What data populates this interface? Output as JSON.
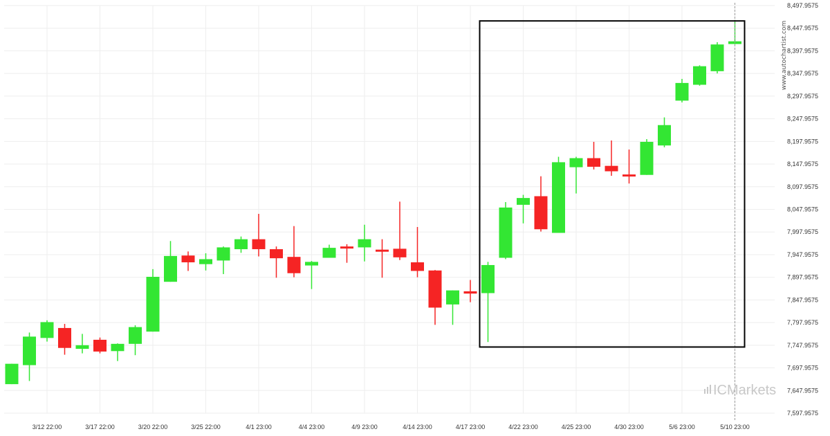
{
  "watermark": "www.autochartist.com",
  "logo": "ICMarkets",
  "colors": {
    "up": "#33e633",
    "down": "#f52424",
    "grid": "#eeeeee",
    "box": "#000000",
    "axis_text": "#333333"
  },
  "chart_data": {
    "type": "candlestick",
    "grid": true,
    "y_ticks": [
      "8,497.9575",
      "8,447.9575",
      "8,397.9575",
      "8,347.9575",
      "8,297.9575",
      "8,247.9575",
      "8,197.9575",
      "8,147.9575",
      "8,097.9575",
      "8,047.9575",
      "7,997.9575",
      "7,947.9575",
      "7,897.9575",
      "7,847.9575",
      "7,797.9575",
      "7,747.9575",
      "7,697.9575",
      "7,647.9575",
      "7,597.9575"
    ],
    "ylim": [
      7597.9575,
      8497.9575
    ],
    "x_ticks": [
      {
        "label": "3/12 22:00",
        "index": 2
      },
      {
        "label": "3/17 22:00",
        "index": 5
      },
      {
        "label": "3/20 22:00",
        "index": 8
      },
      {
        "label": "3/25 22:00",
        "index": 11
      },
      {
        "label": "4/1 23:00",
        "index": 14
      },
      {
        "label": "4/4 23:00",
        "index": 17
      },
      {
        "label": "4/9 23:00",
        "index": 20
      },
      {
        "label": "4/14 23:00",
        "index": 23
      },
      {
        "label": "4/17 23:00",
        "index": 26
      },
      {
        "label": "4/22 23:00",
        "index": 29
      },
      {
        "label": "4/25 23:00",
        "index": 32
      },
      {
        "label": "4/30 23:00",
        "index": 35
      },
      {
        "label": "5/6 23:00",
        "index": 38
      },
      {
        "label": "5/10 23:00",
        "index": 41
      }
    ],
    "candles": [
      {
        "o": 7662,
        "h": 7707,
        "l": 7662,
        "c": 7707
      },
      {
        "o": 7704,
        "h": 7776,
        "l": 7669,
        "c": 7767
      },
      {
        "o": 7764,
        "h": 7803,
        "l": 7756,
        "c": 7799
      },
      {
        "o": 7786,
        "h": 7795,
        "l": 7727,
        "c": 7742
      },
      {
        "o": 7740,
        "h": 7773,
        "l": 7730,
        "c": 7748
      },
      {
        "o": 7760,
        "h": 7765,
        "l": 7730,
        "c": 7734
      },
      {
        "o": 7735,
        "h": 7752,
        "l": 7713,
        "c": 7751
      },
      {
        "o": 7751,
        "h": 7792,
        "l": 7726,
        "c": 7788
      },
      {
        "o": 7778,
        "h": 7916,
        "l": 7778,
        "c": 7899
      },
      {
        "o": 7888,
        "h": 7978,
        "l": 7888,
        "c": 7945
      },
      {
        "o": 7946,
        "h": 7955,
        "l": 7912,
        "c": 7931
      },
      {
        "o": 7927,
        "h": 7951,
        "l": 7913,
        "c": 7938
      },
      {
        "o": 7935,
        "h": 7966,
        "l": 7905,
        "c": 7964
      },
      {
        "o": 7960,
        "h": 7988,
        "l": 7952,
        "c": 7982
      },
      {
        "o": 7982,
        "h": 8038,
        "l": 7944,
        "c": 7960
      },
      {
        "o": 7960,
        "h": 7966,
        "l": 7897,
        "c": 7940
      },
      {
        "o": 7943,
        "h": 8011,
        "l": 7898,
        "c": 7907
      },
      {
        "o": 7924,
        "h": 7934,
        "l": 7872,
        "c": 7932
      },
      {
        "o": 7941,
        "h": 7970,
        "l": 7941,
        "c": 7963
      },
      {
        "o": 7966,
        "h": 7971,
        "l": 7930,
        "c": 7965
      },
      {
        "o": 7964,
        "h": 8014,
        "l": 7933,
        "c": 7982
      },
      {
        "o": 7959,
        "h": 7982,
        "l": 7897,
        "c": 7957
      },
      {
        "o": 7961,
        "h": 8065,
        "l": 7936,
        "c": 7942
      },
      {
        "o": 7931,
        "h": 8009,
        "l": 7898,
        "c": 7912
      },
      {
        "o": 7913,
        "h": 7914,
        "l": 7793,
        "c": 7831
      },
      {
        "o": 7838,
        "h": 7869,
        "l": 7793,
        "c": 7869
      },
      {
        "o": 7867,
        "h": 7892,
        "l": 7843,
        "c": 7862
      },
      {
        "o": 7863,
        "h": 7932,
        "l": 7755,
        "c": 7925
      },
      {
        "o": 7941,
        "h": 8064,
        "l": 7938,
        "c": 8052
      },
      {
        "o": 8058,
        "h": 8080,
        "l": 8017,
        "c": 8073
      },
      {
        "o": 8077,
        "h": 8121,
        "l": 7999,
        "c": 8004
      },
      {
        "o": 7996,
        "h": 8164,
        "l": 7996,
        "c": 8152
      },
      {
        "o": 8141,
        "h": 8164,
        "l": 8083,
        "c": 8161
      },
      {
        "o": 8161,
        "h": 8197,
        "l": 8136,
        "c": 8142
      },
      {
        "o": 8144,
        "h": 8200,
        "l": 8122,
        "c": 8132
      },
      {
        "o": 8125,
        "h": 8180,
        "l": 8105,
        "c": 8121
      },
      {
        "o": 8124,
        "h": 8203,
        "l": 8124,
        "c": 8197
      },
      {
        "o": 8189,
        "h": 8251,
        "l": 8185,
        "c": 8234
      },
      {
        "o": 8288,
        "h": 8336,
        "l": 8284,
        "c": 8327
      },
      {
        "o": 8323,
        "h": 8366,
        "l": 8321,
        "c": 8364
      },
      {
        "o": 8353,
        "h": 8417,
        "l": 8348,
        "c": 8412
      },
      {
        "o": 8413,
        "h": 8466,
        "l": 8413,
        "c": 8419
      }
    ],
    "highlight_box": {
      "from_index": 27,
      "to_index": 41,
      "y_top": 8464,
      "y_bottom": 7744
    },
    "current_marker_index": 41
  }
}
